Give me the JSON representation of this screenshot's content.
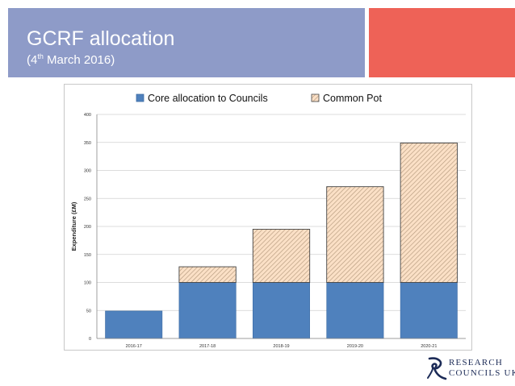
{
  "slide": {
    "title": "GCRF allocation",
    "subtitle_prefix": "(4",
    "subtitle_sup": "th",
    "subtitle_suffix": " March 2016)"
  },
  "colors": {
    "header_band": "#8e9bc8",
    "header_accent": "#ee6257",
    "core": "#4f81bd",
    "common_hatch": "#b59a7e",
    "common_fill": "#fbe0c6"
  },
  "chart_data": {
    "type": "bar",
    "stacked": true,
    "categories": [
      "2016-17",
      "2017-18",
      "2018-19",
      "2019-20",
      "2020-21"
    ],
    "series": [
      {
        "name": "Core allocation to Councils",
        "values": [
          49,
          100,
          100,
          100,
          100
        ]
      },
      {
        "name": "Common Pot",
        "values": [
          0,
          28,
          95,
          171,
          249
        ]
      }
    ],
    "title": "",
    "xlabel": "",
    "ylabel": "Expenditure (£M)",
    "ylim": [
      0,
      400
    ],
    "yticks": [
      0,
      50,
      100,
      150,
      200,
      250,
      300,
      350,
      400
    ],
    "grid": true,
    "legend": "top"
  },
  "logo": {
    "line1": "RESEARCH",
    "line2": "COUNCILS UK"
  }
}
